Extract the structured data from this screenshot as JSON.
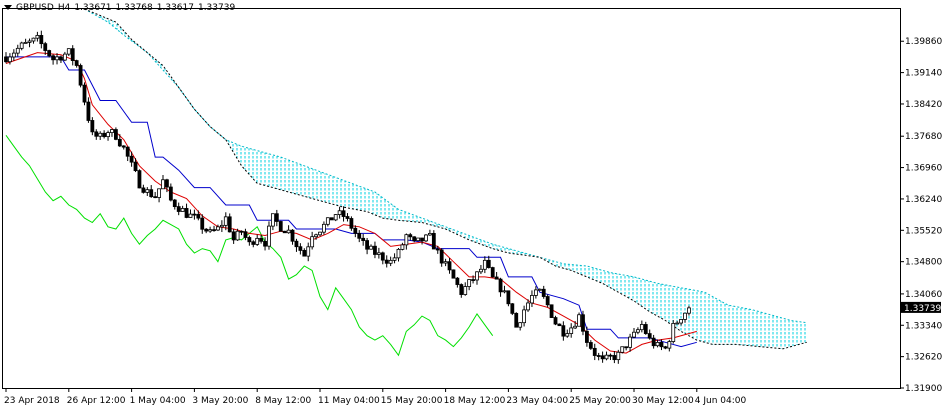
{
  "header": {
    "symbol": "GBPUSD",
    "timeframe": "H4",
    "open": "1.33671",
    "high": "1.33768",
    "low": "1.33617",
    "close": "1.33739"
  },
  "chart_data": {
    "type": "candlestick",
    "symbol": "GBPUSD",
    "timeframe": "H4",
    "indicator": "Ichimoku Kinko Hyo",
    "ylim": [
      1.319,
      1.406
    ],
    "y_ticks": [
      "1.39860",
      "1.39140",
      "1.38420",
      "1.37680",
      "1.36960",
      "1.36240",
      "1.35520",
      "1.34800",
      "1.34060",
      "1.33340",
      "1.32620",
      "1.31900"
    ],
    "y_tick_values": [
      1.3986,
      1.3914,
      1.3842,
      1.3768,
      1.3696,
      1.3624,
      1.3552,
      1.348,
      1.3406,
      1.3334,
      1.3262,
      1.319
    ],
    "x_labels": [
      "23 Apr 2018",
      "26 Apr 12:00",
      "1 May 04:00",
      "3 May 20:00",
      "8 May 12:00",
      "11 May 04:00",
      "15 May 20:00",
      "18 May 12:00",
      "23 May 04:00",
      "25 May 20:00",
      "30 May 12:00",
      "4 Jun 04:00"
    ],
    "x_label_bars": [
      0,
      16,
      32,
      48,
      64,
      80,
      96,
      112,
      128,
      144,
      160,
      176
    ],
    "current_price": "1.33739",
    "current_price_value": 1.33739,
    "price_path": [
      [
        0,
        1.395
      ],
      [
        4,
        1.3975
      ],
      [
        8,
        1.399
      ],
      [
        12,
        1.3945
      ],
      [
        16,
        1.396
      ],
      [
        18,
        1.393
      ],
      [
        20,
        1.385
      ],
      [
        22,
        1.377
      ],
      [
        24,
        1.3765
      ],
      [
        26,
        1.378
      ],
      [
        28,
        1.377
      ],
      [
        30,
        1.374
      ],
      [
        32,
        1.37
      ],
      [
        34,
        1.366
      ],
      [
        36,
        1.364
      ],
      [
        38,
        1.363
      ],
      [
        40,
        1.3665
      ],
      [
        42,
        1.362
      ],
      [
        44,
        1.3605
      ],
      [
        46,
        1.359
      ],
      [
        48,
        1.358
      ],
      [
        50,
        1.356
      ],
      [
        52,
        1.3545
      ],
      [
        54,
        1.3555
      ],
      [
        56,
        1.358
      ],
      [
        58,
        1.353
      ],
      [
        60,
        1.355
      ],
      [
        62,
        1.352
      ],
      [
        64,
        1.354
      ],
      [
        66,
        1.3525
      ],
      [
        68,
        1.358
      ],
      [
        70,
        1.356
      ],
      [
        72,
        1.355
      ],
      [
        74,
        1.352
      ],
      [
        76,
        1.3495
      ],
      [
        78,
        1.3545
      ],
      [
        80,
        1.3555
      ],
      [
        82,
        1.357
      ],
      [
        84,
        1.359
      ],
      [
        86,
        1.3585
      ],
      [
        88,
        1.356
      ],
      [
        90,
        1.353
      ],
      [
        92,
        1.351
      ],
      [
        94,
        1.35
      ],
      [
        96,
        1.349
      ],
      [
        98,
        1.348
      ],
      [
        100,
        1.35
      ],
      [
        102,
        1.354
      ],
      [
        104,
        1.352
      ],
      [
        106,
        1.353
      ],
      [
        108,
        1.3535
      ],
      [
        110,
        1.35
      ],
      [
        112,
        1.347
      ],
      [
        114,
        1.344
      ],
      [
        116,
        1.341
      ],
      [
        118,
        1.343
      ],
      [
        120,
        1.345
      ],
      [
        122,
        1.3475
      ],
      [
        124,
        1.344
      ],
      [
        126,
        1.342
      ],
      [
        128,
        1.339
      ],
      [
        130,
        1.333
      ],
      [
        132,
        1.337
      ],
      [
        134,
        1.34
      ],
      [
        136,
        1.341
      ],
      [
        138,
        1.338
      ],
      [
        140,
        1.334
      ],
      [
        142,
        1.332
      ],
      [
        144,
        1.333
      ],
      [
        146,
        1.3355
      ],
      [
        148,
        1.33
      ],
      [
        150,
        1.327
      ],
      [
        152,
        1.325
      ],
      [
        154,
        1.326
      ],
      [
        156,
        1.3265
      ],
      [
        158,
        1.329
      ],
      [
        160,
        1.331
      ],
      [
        162,
        1.3335
      ],
      [
        164,
        1.33
      ],
      [
        166,
        1.3285
      ],
      [
        168,
        1.328
      ],
      [
        170,
        1.333
      ],
      [
        172,
        1.3355
      ],
      [
        174,
        1.33739
      ]
    ],
    "tenkan_path": [
      [
        0,
        1.3935
      ],
      [
        8,
        1.396
      ],
      [
        14,
        1.3955
      ],
      [
        18,
        1.394
      ],
      [
        20,
        1.39
      ],
      [
        22,
        1.384
      ],
      [
        26,
        1.3795
      ],
      [
        30,
        1.376
      ],
      [
        34,
        1.37
      ],
      [
        38,
        1.3665
      ],
      [
        42,
        1.364
      ],
      [
        46,
        1.3625
      ],
      [
        50,
        1.3585
      ],
      [
        54,
        1.356
      ],
      [
        58,
        1.3555
      ],
      [
        62,
        1.3545
      ],
      [
        66,
        1.354
      ],
      [
        70,
        1.355
      ],
      [
        74,
        1.3545
      ],
      [
        78,
        1.353
      ],
      [
        82,
        1.3545
      ],
      [
        86,
        1.3565
      ],
      [
        90,
        1.356
      ],
      [
        94,
        1.3545
      ],
      [
        98,
        1.3515
      ],
      [
        102,
        1.352
      ],
      [
        106,
        1.3525
      ],
      [
        110,
        1.3515
      ],
      [
        114,
        1.348
      ],
      [
        118,
        1.3445
      ],
      [
        122,
        1.3445
      ],
      [
        126,
        1.344
      ],
      [
        130,
        1.341
      ],
      [
        134,
        1.3385
      ],
      [
        138,
        1.3375
      ],
      [
        142,
        1.3355
      ],
      [
        146,
        1.3335
      ],
      [
        150,
        1.33
      ],
      [
        154,
        1.3275
      ],
      [
        158,
        1.327
      ],
      [
        162,
        1.329
      ],
      [
        166,
        1.33
      ],
      [
        170,
        1.3305
      ],
      [
        176,
        1.332
      ]
    ],
    "kijun_path": [
      [
        0,
        1.395
      ],
      [
        14,
        1.395
      ],
      [
        16,
        1.392
      ],
      [
        20,
        1.392
      ],
      [
        24,
        1.385
      ],
      [
        28,
        1.385
      ],
      [
        32,
        1.38
      ],
      [
        36,
        1.38
      ],
      [
        38,
        1.372
      ],
      [
        40,
        1.372
      ],
      [
        44,
        1.369
      ],
      [
        48,
        1.365
      ],
      [
        52,
        1.365
      ],
      [
        56,
        1.361
      ],
      [
        62,
        1.361
      ],
      [
        64,
        1.3575
      ],
      [
        72,
        1.3575
      ],
      [
        74,
        1.3555
      ],
      [
        84,
        1.3555
      ],
      [
        88,
        1.3545
      ],
      [
        94,
        1.3545
      ],
      [
        96,
        1.353
      ],
      [
        102,
        1.353
      ],
      [
        106,
        1.3525
      ],
      [
        110,
        1.351
      ],
      [
        118,
        1.351
      ],
      [
        120,
        1.349
      ],
      [
        126,
        1.349
      ],
      [
        128,
        1.3445
      ],
      [
        134,
        1.3445
      ],
      [
        136,
        1.341
      ],
      [
        142,
        1.3395
      ],
      [
        146,
        1.338
      ],
      [
        148,
        1.3325
      ],
      [
        154,
        1.3325
      ],
      [
        156,
        1.3305
      ],
      [
        164,
        1.3305
      ],
      [
        168,
        1.3295
      ],
      [
        172,
        1.3285
      ],
      [
        176,
        1.3295
      ]
    ],
    "chikou_path": [
      [
        0,
        1.377
      ],
      [
        2,
        1.3745
      ],
      [
        4,
        1.372
      ],
      [
        6,
        1.37
      ],
      [
        8,
        1.367
      ],
      [
        10,
        1.364
      ],
      [
        12,
        1.362
      ],
      [
        14,
        1.363
      ],
      [
        16,
        1.361
      ],
      [
        18,
        1.36
      ],
      [
        20,
        1.358
      ],
      [
        22,
        1.357
      ],
      [
        24,
        1.359
      ],
      [
        26,
        1.356
      ],
      [
        28,
        1.3555
      ],
      [
        30,
        1.358
      ],
      [
        32,
        1.3545
      ],
      [
        34,
        1.352
      ],
      [
        36,
        1.354
      ],
      [
        38,
        1.3555
      ],
      [
        40,
        1.3575
      ],
      [
        42,
        1.3565
      ],
      [
        44,
        1.3555
      ],
      [
        46,
        1.352
      ],
      [
        48,
        1.35
      ],
      [
        50,
        1.351
      ],
      [
        52,
        1.3505
      ],
      [
        54,
        1.348
      ],
      [
        56,
        1.353
      ],
      [
        58,
        1.3535
      ],
      [
        60,
        1.353
      ],
      [
        62,
        1.3545
      ],
      [
        64,
        1.356
      ],
      [
        66,
        1.3525
      ],
      [
        68,
        1.351
      ],
      [
        70,
        1.349
      ],
      [
        72,
        1.344
      ],
      [
        74,
        1.345
      ],
      [
        76,
        1.347
      ],
      [
        78,
        1.346
      ],
      [
        80,
        1.34
      ],
      [
        82,
        1.337
      ],
      [
        84,
        1.342
      ],
      [
        86,
        1.3395
      ],
      [
        88,
        1.337
      ],
      [
        90,
        1.333
      ],
      [
        92,
        1.331
      ],
      [
        94,
        1.33
      ],
      [
        96,
        1.331
      ],
      [
        98,
        1.329
      ],
      [
        100,
        1.3265
      ],
      [
        102,
        1.332
      ],
      [
        104,
        1.3335
      ],
      [
        106,
        1.3355
      ],
      [
        108,
        1.3345
      ],
      [
        110,
        1.331
      ],
      [
        112,
        1.33
      ],
      [
        114,
        1.3285
      ],
      [
        116,
        1.3305
      ],
      [
        118,
        1.333
      ],
      [
        120,
        1.336
      ],
      [
        122,
        1.3335
      ],
      [
        124,
        1.331
      ]
    ],
    "span_a_path": [
      [
        20,
        1.406
      ],
      [
        26,
        1.403
      ],
      [
        30,
        1.4
      ],
      [
        36,
        1.396
      ],
      [
        40,
        1.392
      ],
      [
        44,
        1.388
      ],
      [
        48,
        1.383
      ],
      [
        52,
        1.379
      ],
      [
        56,
        1.376
      ],
      [
        60,
        1.3745
      ],
      [
        64,
        1.3735
      ],
      [
        70,
        1.372
      ],
      [
        76,
        1.37
      ],
      [
        82,
        1.368
      ],
      [
        88,
        1.366
      ],
      [
        94,
        1.364
      ],
      [
        100,
        1.36
      ],
      [
        106,
        1.358
      ],
      [
        112,
        1.356
      ],
      [
        118,
        1.354
      ],
      [
        124,
        1.352
      ],
      [
        130,
        1.3505
      ],
      [
        136,
        1.349
      ],
      [
        142,
        1.3475
      ],
      [
        148,
        1.347
      ],
      [
        154,
        1.3455
      ],
      [
        160,
        1.3445
      ],
      [
        166,
        1.343
      ],
      [
        172,
        1.342
      ],
      [
        178,
        1.341
      ],
      [
        184,
        1.338
      ],
      [
        190,
        1.337
      ],
      [
        196,
        1.3355
      ],
      [
        200,
        1.3345
      ],
      [
        204,
        1.334
      ]
    ],
    "span_b_path": [
      [
        20,
        1.406
      ],
      [
        24,
        1.4045
      ],
      [
        28,
        1.403
      ],
      [
        32,
        1.399
      ],
      [
        36,
        1.396
      ],
      [
        40,
        1.393
      ],
      [
        44,
        1.388
      ],
      [
        48,
        1.383
      ],
      [
        52,
        1.379
      ],
      [
        56,
        1.376
      ],
      [
        60,
        1.37
      ],
      [
        64,
        1.366
      ],
      [
        68,
        1.365
      ],
      [
        72,
        1.364
      ],
      [
        76,
        1.363
      ],
      [
        80,
        1.362
      ],
      [
        86,
        1.3605
      ],
      [
        92,
        1.3595
      ],
      [
        96,
        1.358
      ],
      [
        100,
        1.3575
      ],
      [
        106,
        1.357
      ],
      [
        112,
        1.3555
      ],
      [
        118,
        1.353
      ],
      [
        124,
        1.351
      ],
      [
        128,
        1.35
      ],
      [
        132,
        1.3495
      ],
      [
        136,
        1.349
      ],
      [
        140,
        1.347
      ],
      [
        144,
        1.346
      ],
      [
        148,
        1.3445
      ],
      [
        152,
        1.343
      ],
      [
        156,
        1.341
      ],
      [
        160,
        1.339
      ],
      [
        164,
        1.3365
      ],
      [
        168,
        1.3345
      ],
      [
        172,
        1.332
      ],
      [
        176,
        1.33
      ],
      [
        180,
        1.329
      ],
      [
        186,
        1.329
      ],
      [
        192,
        1.3285
      ],
      [
        198,
        1.328
      ],
      [
        204,
        1.3295
      ]
    ]
  }
}
